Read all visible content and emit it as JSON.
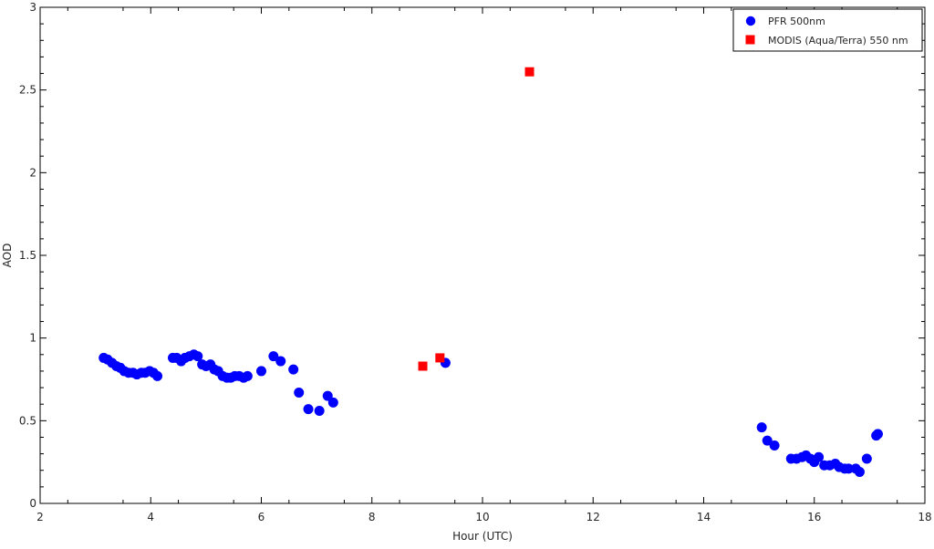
{
  "chart_data": {
    "type": "scatter",
    "title": "",
    "xlabel": "Hour (UTC)",
    "ylabel": "AOD",
    "xlim": [
      2,
      18
    ],
    "ylim": [
      0,
      3
    ],
    "x_ticks": [
      2,
      4,
      6,
      8,
      10,
      12,
      14,
      16,
      18
    ],
    "y_ticks": [
      0,
      0.5,
      1,
      1.5,
      2,
      2.5,
      3
    ],
    "y_tick_labels": [
      "0",
      "0.5",
      "1",
      "1.5",
      "2",
      "2.5",
      "3"
    ],
    "grid": false,
    "legend_position": "top-right",
    "series": [
      {
        "name": "PFR 500nm",
        "marker": "circle",
        "color": "#0000ff",
        "points": [
          [
            3.15,
            0.88
          ],
          [
            3.22,
            0.87
          ],
          [
            3.3,
            0.85
          ],
          [
            3.38,
            0.83
          ],
          [
            3.45,
            0.82
          ],
          [
            3.52,
            0.8
          ],
          [
            3.6,
            0.79
          ],
          [
            3.68,
            0.79
          ],
          [
            3.75,
            0.78
          ],
          [
            3.83,
            0.79
          ],
          [
            3.9,
            0.79
          ],
          [
            3.98,
            0.8
          ],
          [
            4.05,
            0.79
          ],
          [
            4.12,
            0.77
          ],
          [
            4.4,
            0.88
          ],
          [
            4.47,
            0.88
          ],
          [
            4.55,
            0.86
          ],
          [
            4.62,
            0.88
          ],
          [
            4.7,
            0.89
          ],
          [
            4.78,
            0.9
          ],
          [
            4.85,
            0.89
          ],
          [
            4.93,
            0.84
          ],
          [
            5.0,
            0.83
          ],
          [
            5.08,
            0.84
          ],
          [
            5.15,
            0.81
          ],
          [
            5.22,
            0.8
          ],
          [
            5.3,
            0.77
          ],
          [
            5.38,
            0.76
          ],
          [
            5.45,
            0.76
          ],
          [
            5.52,
            0.77
          ],
          [
            5.6,
            0.77
          ],
          [
            5.68,
            0.76
          ],
          [
            5.75,
            0.77
          ],
          [
            6.0,
            0.8
          ],
          [
            6.22,
            0.89
          ],
          [
            6.35,
            0.86
          ],
          [
            6.58,
            0.81
          ],
          [
            6.68,
            0.67
          ],
          [
            6.85,
            0.57
          ],
          [
            7.05,
            0.56
          ],
          [
            7.2,
            0.65
          ],
          [
            7.3,
            0.61
          ],
          [
            9.33,
            0.85
          ],
          [
            15.05,
            0.46
          ],
          [
            15.15,
            0.38
          ],
          [
            15.28,
            0.35
          ],
          [
            15.58,
            0.27
          ],
          [
            15.68,
            0.27
          ],
          [
            15.78,
            0.28
          ],
          [
            15.85,
            0.29
          ],
          [
            15.93,
            0.27
          ],
          [
            16.0,
            0.25
          ],
          [
            16.08,
            0.28
          ],
          [
            16.18,
            0.23
          ],
          [
            16.28,
            0.23
          ],
          [
            16.38,
            0.24
          ],
          [
            16.45,
            0.22
          ],
          [
            16.55,
            0.21
          ],
          [
            16.62,
            0.21
          ],
          [
            16.75,
            0.21
          ],
          [
            16.82,
            0.19
          ],
          [
            16.95,
            0.27
          ],
          [
            17.12,
            0.41
          ],
          [
            17.15,
            0.42
          ]
        ]
      },
      {
        "name": "MODIS (Aqua/Terra) 550 nm",
        "marker": "square",
        "color": "#ff0000",
        "points": [
          [
            8.92,
            0.83
          ],
          [
            9.23,
            0.88
          ],
          [
            10.85,
            2.61
          ]
        ]
      }
    ]
  }
}
